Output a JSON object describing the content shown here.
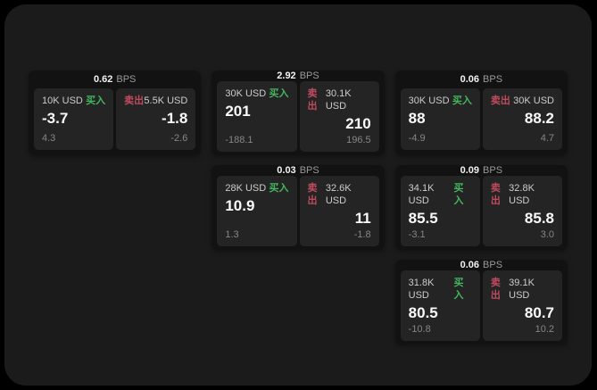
{
  "labels": {
    "bps_unit": "BPS",
    "buy": "买入",
    "sell": "卖出"
  },
  "colors": {
    "buy_green": "#43b75f",
    "sell_red": "#bf4b5e",
    "screen_bg": "#1b1b1c",
    "card_bg": "#121212",
    "panel_bg": "#242424"
  },
  "cards": [
    {
      "spread": "0.62",
      "buy": {
        "amount": "10K USD",
        "price": "-3.7",
        "sub": "4.3"
      },
      "sell": {
        "amount": "5.5K USD",
        "price": "-1.8",
        "sub": "-2.6"
      }
    },
    {
      "spread": "2.92",
      "buy": {
        "amount": "30K USD",
        "price": "201",
        "sub": "-188.1"
      },
      "sell": {
        "amount": "30.1K USD",
        "price": "210",
        "sub": "196.5"
      }
    },
    {
      "spread": "0.06",
      "buy": {
        "amount": "30K USD",
        "price": "88",
        "sub": "-4.9"
      },
      "sell": {
        "amount": "30K USD",
        "price": "88.2",
        "sub": "4.7"
      }
    },
    {
      "spread": "0.03",
      "buy": {
        "amount": "28K USD",
        "price": "10.9",
        "sub": "1.3"
      },
      "sell": {
        "amount": "32.6K USD",
        "price": "11",
        "sub": "-1.8"
      }
    },
    {
      "spread": "0.09",
      "buy": {
        "amount": "34.1K USD",
        "price": "85.5",
        "sub": "-3.1"
      },
      "sell": {
        "amount": "32.8K USD",
        "price": "85.8",
        "sub": "3.0"
      }
    },
    {
      "spread": "0.06",
      "buy": {
        "amount": "31.8K USD",
        "price": "80.5",
        "sub": "-10.8"
      },
      "sell": {
        "amount": "39.1K USD",
        "price": "80.7",
        "sub": "10.2"
      }
    }
  ]
}
